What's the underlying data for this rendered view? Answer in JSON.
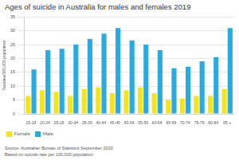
{
  "chart_data": {
    "type": "bar",
    "title": "Ages of suicide in Australia for males and females 2019",
    "y_label": "Suicides/100,000 population",
    "categories": [
      "15-19",
      "20-24",
      "25-29",
      "30-34",
      "35-39",
      "40-44",
      "45-49",
      "50-54",
      "55-59",
      "60-64",
      "65-69",
      "70-74",
      "75-79",
      "80-84",
      "85 +"
    ],
    "series": [
      {
        "name": "Female",
        "color": "#f3e51d",
        "values": [
          6.5,
          8.5,
          8,
          6.5,
          9,
          9.5,
          7.5,
          8.5,
          9.5,
          7.5,
          5,
          5.5,
          6.5,
          6.5,
          9
        ]
      },
      {
        "name": "Male",
        "color": "#29abe2",
        "values": [
          16,
          23,
          23.5,
          25,
          27,
          29,
          31,
          26.5,
          25,
          23,
          16.5,
          17,
          19,
          20.5,
          31
        ]
      }
    ],
    "ylim": [
      0,
      35
    ],
    "yticks": [
      0,
      5,
      10,
      15,
      20,
      25,
      30,
      35
    ],
    "grid": true,
    "legend": "bottom-left",
    "annotations": [
      "Source: Australian Bureau of Statistics September 2020",
      "Based on suicide rate per 100,000 population"
    ]
  }
}
